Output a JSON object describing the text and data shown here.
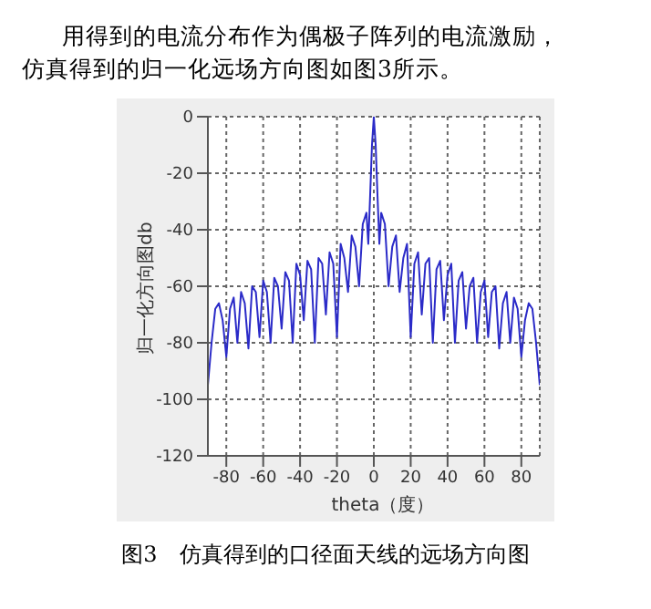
{
  "chart_data": {
    "type": "line",
    "xlabel": "theta（度）",
    "ylabel": "归一化方向图db",
    "annotations": [
      "用得到的电流分布作为偶极子阵列的电流激励，",
      "仿真得到的归一化远场方向图如图3所示。",
      "图3　仿真得到的口径面天线的远场方向图"
    ],
    "x": [
      -90,
      -88,
      -86,
      -84,
      -82,
      -80,
      -78,
      -76,
      -74,
      -72,
      -70,
      -68,
      -66,
      -64,
      -62,
      -60,
      -58,
      -56,
      -54,
      -52,
      -50,
      -48,
      -46,
      -44,
      -42,
      -40,
      -38,
      -36,
      -34,
      -32,
      -30,
      -28,
      -26,
      -24,
      -22,
      -20,
      -18,
      -16,
      -14,
      -12,
      -10,
      -8,
      -6,
      -4,
      -3,
      -2,
      -1,
      0,
      1,
      2,
      3,
      4,
      6,
      8,
      10,
      12,
      14,
      16,
      18,
      20,
      22,
      24,
      26,
      28,
      30,
      32,
      34,
      36,
      38,
      40,
      42,
      44,
      46,
      48,
      50,
      52,
      54,
      56,
      58,
      60,
      62,
      64,
      66,
      68,
      70,
      72,
      74,
      76,
      78,
      80,
      82,
      84,
      86,
      88,
      90
    ],
    "series": [
      {
        "color": "#2b2bc8",
        "values": [
          -95,
          -80,
          -68,
          -66,
          -72,
          -85,
          -68,
          -64,
          -80,
          -62,
          -66,
          -82,
          -60,
          -62,
          -78,
          -58,
          -62,
          -80,
          -57,
          -60,
          -75,
          -55,
          -58,
          -80,
          -52,
          -56,
          -72,
          -51,
          -54,
          -80,
          -50,
          -52,
          -70,
          -48,
          -52,
          -78,
          -45,
          -50,
          -62,
          -42,
          -46,
          -60,
          -38,
          -34,
          -45,
          -28,
          -10,
          0,
          -10,
          -28,
          -45,
          -34,
          -38,
          -60,
          -46,
          -42,
          -62,
          -50,
          -45,
          -78,
          -52,
          -48,
          -70,
          -52,
          -50,
          -80,
          -54,
          -51,
          -72,
          -56,
          -52,
          -80,
          -58,
          -55,
          -75,
          -60,
          -57,
          -80,
          -62,
          -58,
          -78,
          -62,
          -60,
          -82,
          -66,
          -62,
          -80,
          -64,
          -68,
          -85,
          -72,
          -66,
          -68,
          -80,
          -95
        ]
      }
    ],
    "xlim": [
      -90,
      90
    ],
    "xticks": [
      -80,
      -60,
      -40,
      -20,
      0,
      20,
      40,
      60,
      80
    ],
    "ylim": [
      -120,
      0
    ],
    "yticks": [
      -120,
      -100,
      -80,
      -60,
      -40,
      -20,
      0
    ],
    "grid": true,
    "legend": false,
    "marker": "none",
    "line_style": "solid"
  }
}
